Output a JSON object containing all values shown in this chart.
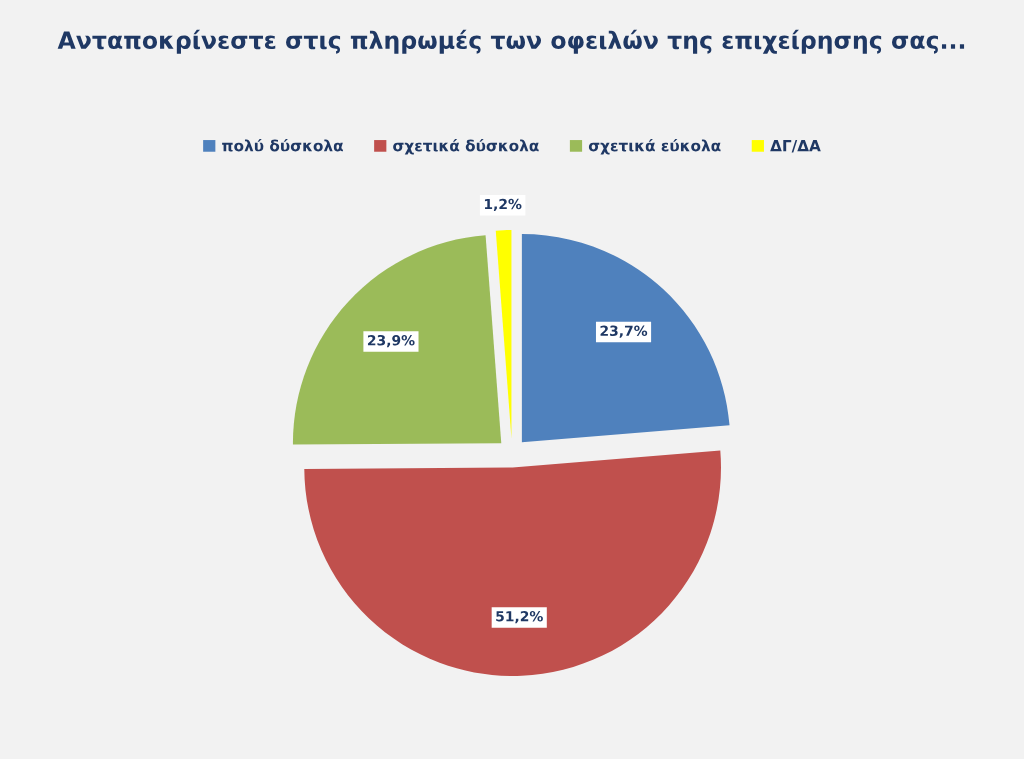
{
  "chart_data": {
    "type": "pie",
    "title": "Ανταποκρίνεστε στις πληρωμές των οφειλών της επιχείρησης σας...",
    "categories": [
      "πολύ δύσκολα",
      "σχετικά δύσκολα",
      "σχετικά εύκολα",
      "ΔΓ/ΔΑ"
    ],
    "values": [
      23.7,
      51.2,
      23.9,
      1.2
    ],
    "colors": [
      "#4f81bd",
      "#c0504d",
      "#9bbb59",
      "#ffff00"
    ],
    "value_labels": [
      "23,7%",
      "51,2%",
      "23,9%",
      "1,2%"
    ],
    "legend": "top"
  }
}
